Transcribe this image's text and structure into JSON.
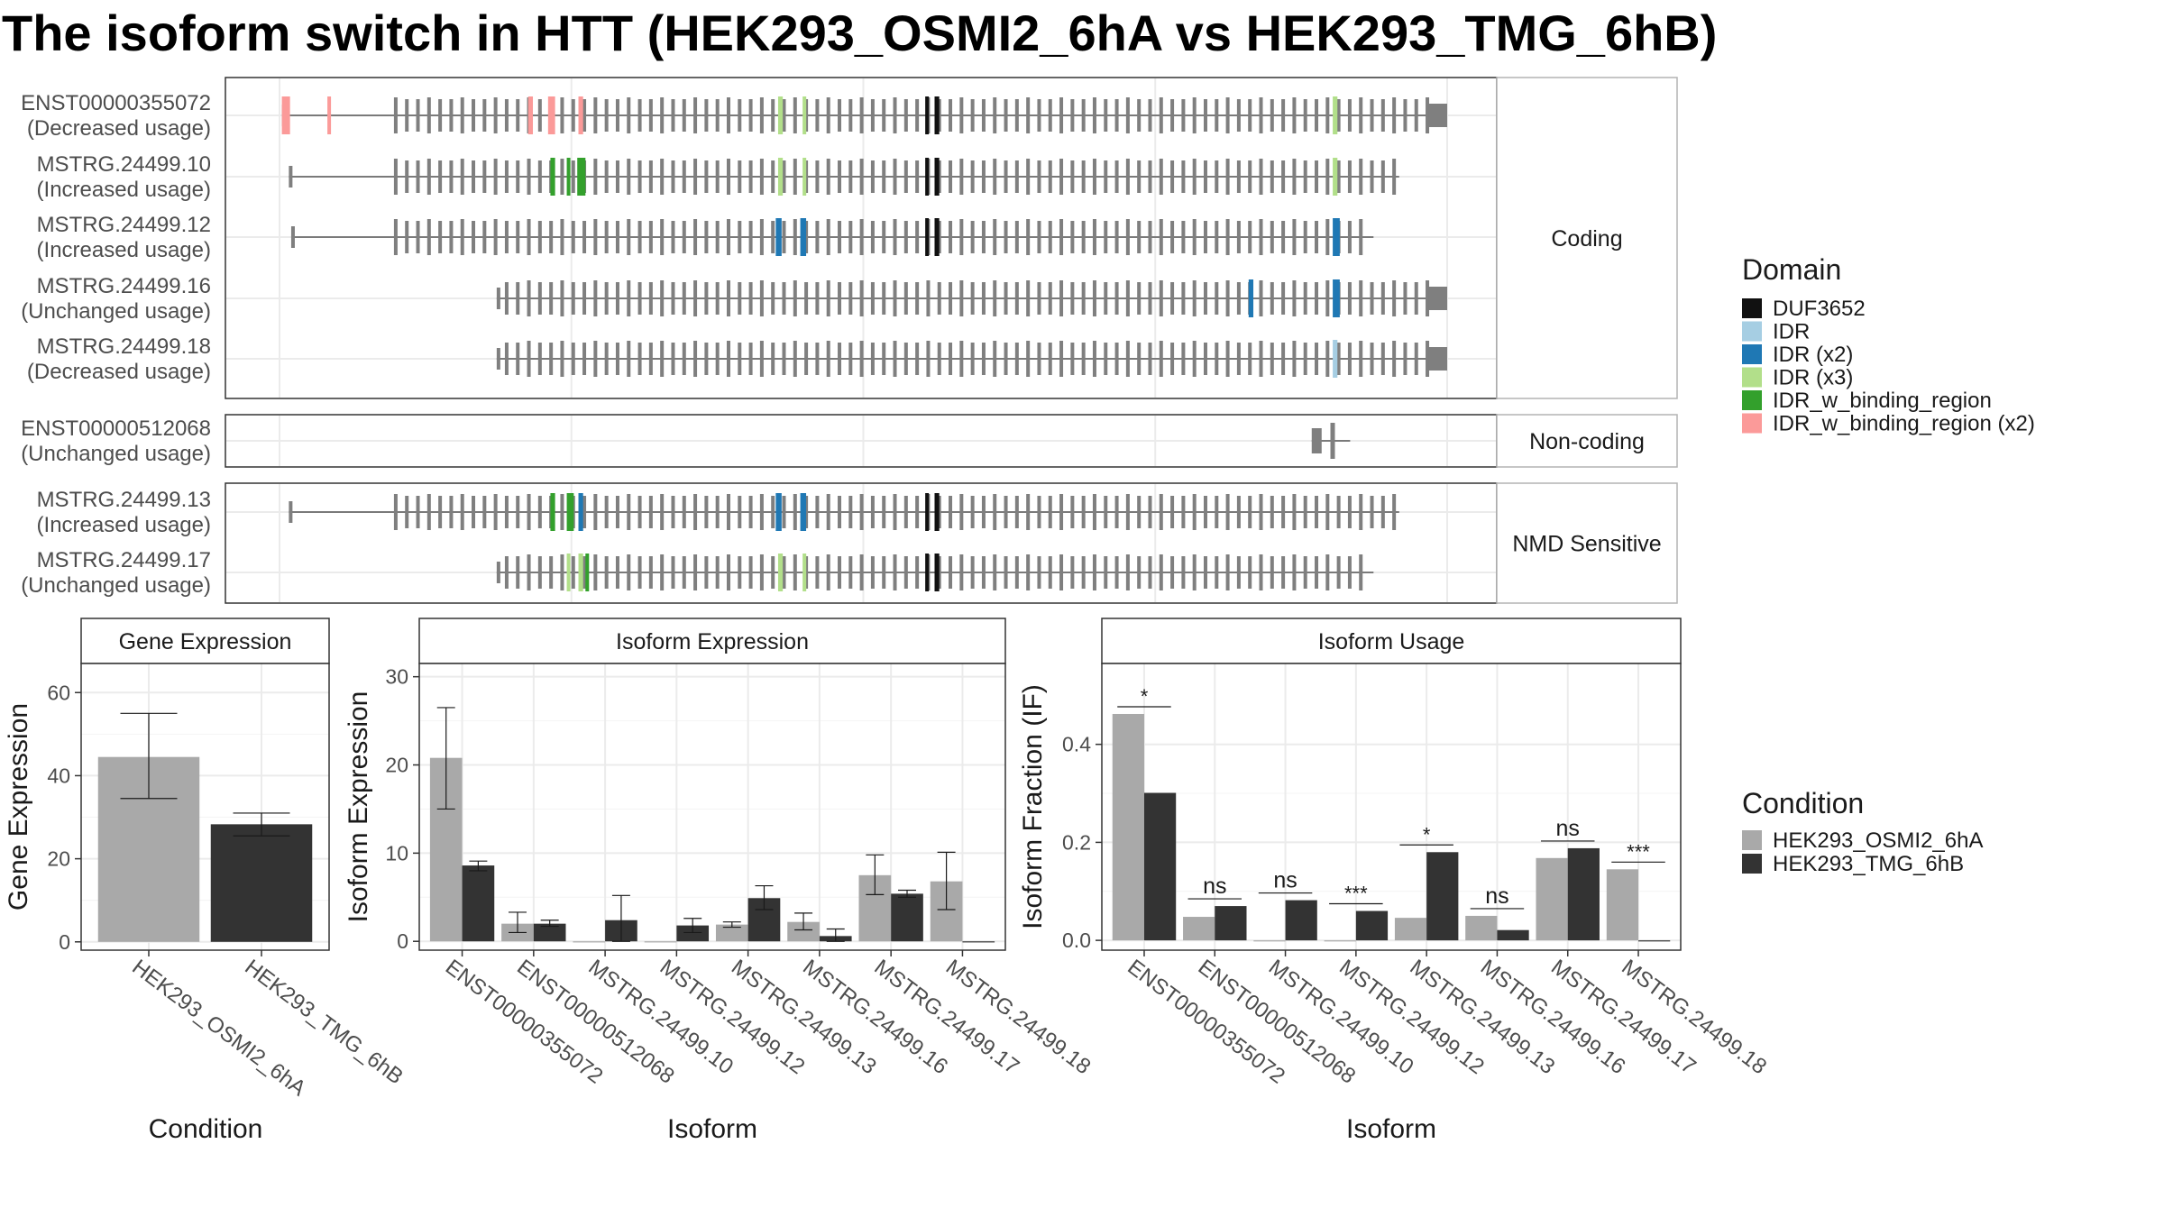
{
  "title": "The isoform switch in HTT (HEK293_OSMI2_6hA vs HEK293_TMG_6hB)",
  "colors": {
    "osmi": "#a9a9a9",
    "tmg": "#333333",
    "exon": "#7f7f7f",
    "intron": "#555555",
    "DUF3652": "#111111",
    "IDR": "#a6cee3",
    "IDR (x2)": "#1f78b4",
    "IDR (x3)": "#b2df8a",
    "IDR_w_binding_region": "#33a02c",
    "IDR_w_binding_region (x2)": "#fb9a99"
  },
  "transcript_plot": {
    "genomic_range": [
      0,
      1000
    ],
    "panels": [
      {
        "label": "Coding",
        "transcripts": [
          {
            "name": "ENST00000355072",
            "usage": "(Decreased usage)",
            "start": 2,
            "end": 1000,
            "domains": [
              {
                "type": "IDR_w_binding_region (x2)",
                "ranges": [
                  [
                    2,
                    9
                  ],
                  [
                    41,
                    43
                  ],
                  [
                    213,
                    217
                  ],
                  [
                    230,
                    236
                  ],
                  [
                    256,
                    260
                  ]
                ]
              },
              {
                "type": "IDR (x3)",
                "ranges": [
                  [
                    427,
                    431
                  ],
                  [
                    448,
                    451
                  ],
                  [
                    902,
                    906
                  ]
                ]
              },
              {
                "type": "DUF3652",
                "ranges": [
                  [
                    553,
                    556
                  ],
                  [
                    561,
                    565
                  ]
                ]
              }
            ]
          },
          {
            "name": "MSTRG.24499.10",
            "usage": "(Increased usage)",
            "start": 8,
            "end": 962,
            "domains": [
              {
                "type": "IDR_w_binding_region",
                "ranges": [
                  [
                    232,
                    236
                  ],
                  [
                    246,
                    249
                  ],
                  [
                    255,
                    262
                  ]
                ]
              },
              {
                "type": "IDR (x3)",
                "ranges": [
                  [
                    427,
                    431
                  ],
                  [
                    448,
                    451
                  ],
                  [
                    902,
                    906
                  ]
                ]
              },
              {
                "type": "DUF3652",
                "ranges": [
                  [
                    553,
                    556
                  ],
                  [
                    561,
                    565
                  ]
                ]
              }
            ]
          },
          {
            "name": "MSTRG.24499.12",
            "usage": "(Increased usage)",
            "start": 10,
            "end": 940,
            "domains": [
              {
                "type": "IDR (x2)",
                "ranges": [
                  [
                    425,
                    430
                  ],
                  [
                    446,
                    451
                  ],
                  [
                    902,
                    908
                  ]
                ]
              },
              {
                "type": "DUF3652",
                "ranges": [
                  [
                    553,
                    556
                  ],
                  [
                    561,
                    565
                  ]
                ]
              }
            ]
          },
          {
            "name": "MSTRG.24499.16",
            "usage": "(Unchanged usage)",
            "start": 186,
            "end": 1000,
            "domains": [
              {
                "type": "IDR (x2)",
                "ranges": [
                  [
                    830,
                    834
                  ],
                  [
                    902,
                    908
                  ]
                ]
              }
            ]
          },
          {
            "name": "MSTRG.24499.18",
            "usage": "(Decreased usage)",
            "start": 186,
            "end": 1000,
            "domains": [
              {
                "type": "IDR",
                "ranges": [
                  [
                    902,
                    906
                  ]
                ]
              }
            ]
          }
        ]
      },
      {
        "label": "Non-coding",
        "transcripts": [
          {
            "name": "ENST00000512068",
            "usage": "(Unchanged usage)",
            "start": 884,
            "end": 920,
            "domains": []
          }
        ]
      },
      {
        "label": "NMD Sensitive",
        "transcripts": [
          {
            "name": "MSTRG.24499.13",
            "usage": "(Increased usage)",
            "start": 8,
            "end": 962,
            "domains": [
              {
                "type": "IDR_w_binding_region",
                "ranges": [
                  [
                    232,
                    236
                  ],
                  [
                    246,
                    252
                  ]
                ]
              },
              {
                "type": "IDR (x2)",
                "ranges": [
                  [
                    256,
                    260
                  ],
                  [
                    425,
                    430
                  ],
                  [
                    446,
                    451
                  ]
                ]
              },
              {
                "type": "DUF3652",
                "ranges": [
                  [
                    553,
                    556
                  ],
                  [
                    561,
                    565
                  ]
                ]
              }
            ]
          },
          {
            "name": "MSTRG.24499.17",
            "usage": "(Unchanged usage)",
            "start": 186,
            "end": 940,
            "domains": [
              {
                "type": "IDR (x3)",
                "ranges": [
                  [
                    246,
                    249
                  ],
                  [
                    256,
                    260
                  ],
                  [
                    427,
                    431
                  ],
                  [
                    448,
                    451
                  ]
                ]
              },
              {
                "type": "IDR_w_binding_region",
                "ranges": [
                  [
                    262,
                    265
                  ]
                ]
              },
              {
                "type": "DUF3652",
                "ranges": [
                  [
                    553,
                    556
                  ],
                  [
                    561,
                    565
                  ]
                ]
              }
            ]
          }
        ]
      }
    ]
  },
  "legend": {
    "domain_title": "Domain",
    "domain_items": [
      "DUF3652",
      "IDR",
      "IDR (x2)",
      "IDR (x3)",
      "IDR_w_binding_region",
      "IDR_w_binding_region (x2)"
    ],
    "condition_title": "Condition",
    "condition_items": [
      "HEK293_OSMI2_6hA",
      "HEK293_TMG_6hB"
    ]
  },
  "chart_data": [
    {
      "type": "bar",
      "title": "Gene Expression",
      "xlabel": "Condition",
      "ylabel": "Gene Expression",
      "ylim": [
        -2,
        67
      ],
      "yticks": [
        0,
        20,
        40,
        60
      ],
      "grid": true,
      "categories": [
        "HEK293_OSMI2_6hA",
        "HEK293_TMG_6hB"
      ],
      "values": [
        44.5,
        28.3
      ],
      "errors": [
        [
          34.5,
          55
        ],
        [
          25.5,
          31
        ]
      ]
    },
    {
      "type": "bar",
      "title": "Isoform Expression",
      "xlabel": "Isoform",
      "ylabel": "Isoform Expression",
      "ylim": [
        -1,
        31.5
      ],
      "yticks": [
        0,
        10,
        20,
        30
      ],
      "grid": true,
      "categories": [
        "ENST00000355072",
        "ENST00000512068",
        "MSTRG.24499.10",
        "MSTRG.24499.12",
        "MSTRG.24499.13",
        "MSTRG.24499.16",
        "MSTRG.24499.17",
        "MSTRG.24499.18"
      ],
      "series": [
        {
          "name": "HEK293_OSMI2_6hA",
          "values": [
            20.8,
            2.0,
            0.0,
            0.0,
            1.9,
            2.2,
            7.5,
            6.8
          ],
          "errors": [
            [
              15,
              26.5
            ],
            [
              1.0,
              3.3
            ],
            null,
            null,
            [
              1.6,
              2.2
            ],
            [
              1.3,
              3.2
            ],
            [
              5.3,
              9.8
            ],
            [
              3.6,
              10.1
            ]
          ]
        },
        {
          "name": "HEK293_TMG_6hB",
          "values": [
            8.6,
            2.0,
            2.4,
            1.8,
            4.9,
            0.6,
            5.4,
            0.0
          ],
          "errors": [
            [
              8.0,
              9.1
            ],
            [
              1.7,
              2.4
            ],
            [
              0.0,
              5.2
            ],
            [
              1.0,
              2.6
            ],
            [
              3.6,
              6.3
            ],
            [
              0.0,
              1.4
            ],
            [
              5.0,
              5.8
            ],
            null
          ]
        }
      ]
    },
    {
      "type": "bar",
      "title": "Isoform Usage",
      "xlabel": "Isoform",
      "ylabel": "Isoform Fraction (IF)",
      "ylim": [
        -0.02,
        0.565
      ],
      "yticks": [
        0.0,
        0.2,
        0.4
      ],
      "grid": true,
      "categories": [
        "ENST00000355072",
        "ENST00000512068",
        "MSTRG.24499.10",
        "MSTRG.24499.12",
        "MSTRG.24499.13",
        "MSTRG.24499.16",
        "MSTRG.24499.17",
        "MSTRG.24499.18"
      ],
      "series": [
        {
          "name": "HEK293_OSMI2_6hA",
          "values": [
            0.462,
            0.048,
            0.0,
            0.0,
            0.046,
            0.05,
            0.168,
            0.145
          ]
        },
        {
          "name": "HEK293_TMG_6hB",
          "values": [
            0.301,
            0.07,
            0.082,
            0.06,
            0.18,
            0.021,
            0.188,
            0.0
          ]
        }
      ],
      "significance": [
        "*",
        "ns",
        "ns",
        "***",
        "*",
        "ns",
        "ns",
        "***"
      ]
    }
  ]
}
